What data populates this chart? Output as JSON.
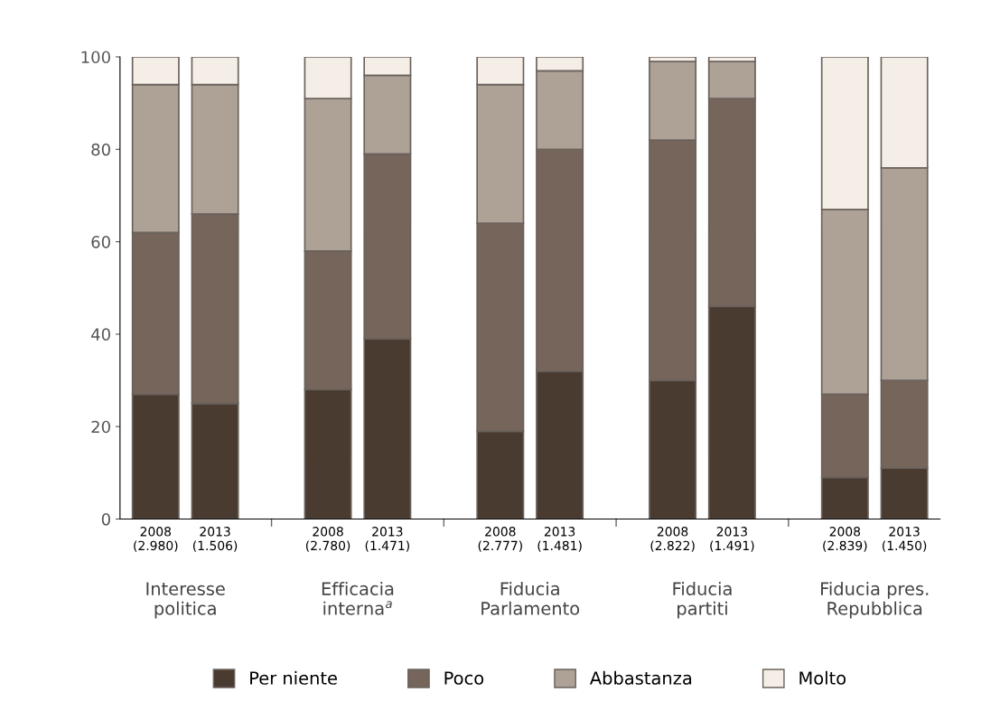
{
  "chart_data": {
    "type": "bar",
    "stacked": true,
    "categories": [
      "2008\n(2.980)",
      "2013\n(1.506)",
      "2008\n(2.780)",
      "2013\n(1.471)",
      "2008\n(2.777)",
      "2013\n(1.481)",
      "2008\n(2.822)",
      "2013\n(1.491)",
      "2008\n(2.839)",
      "2013\n(1.450)"
    ],
    "series": [
      {
        "name": "Per niente",
        "color": "#4a3b31",
        "values": [
          27,
          25,
          28,
          39,
          19,
          32,
          30,
          46,
          9,
          11
        ]
      },
      {
        "name": "Poco",
        "color": "#75655a",
        "values": [
          35,
          41,
          30,
          40,
          45,
          48,
          52,
          45,
          18,
          19
        ]
      },
      {
        "name": "Abbastanza",
        "color": "#aea196",
        "values": [
          32,
          28,
          33,
          17,
          30,
          17,
          17,
          8,
          40,
          46
        ]
      },
      {
        "name": "Molto",
        "color": "#f4eee7",
        "values": [
          6,
          6,
          9,
          4,
          6,
          3,
          1,
          1,
          33,
          24
        ]
      }
    ],
    "annotations": [
      "Interesse\npolitica",
      "Efficacia\ninterna$^{a}$",
      "Fiducia\nParlamento",
      "Fiducia\npartiti",
      "Fiducia pres.\nRepubblica"
    ],
    "ylim": [
      0,
      100
    ],
    "yticks": [
      0,
      20,
      40,
      60,
      80,
      100
    ],
    "grid": false,
    "legend": "bottom"
  }
}
